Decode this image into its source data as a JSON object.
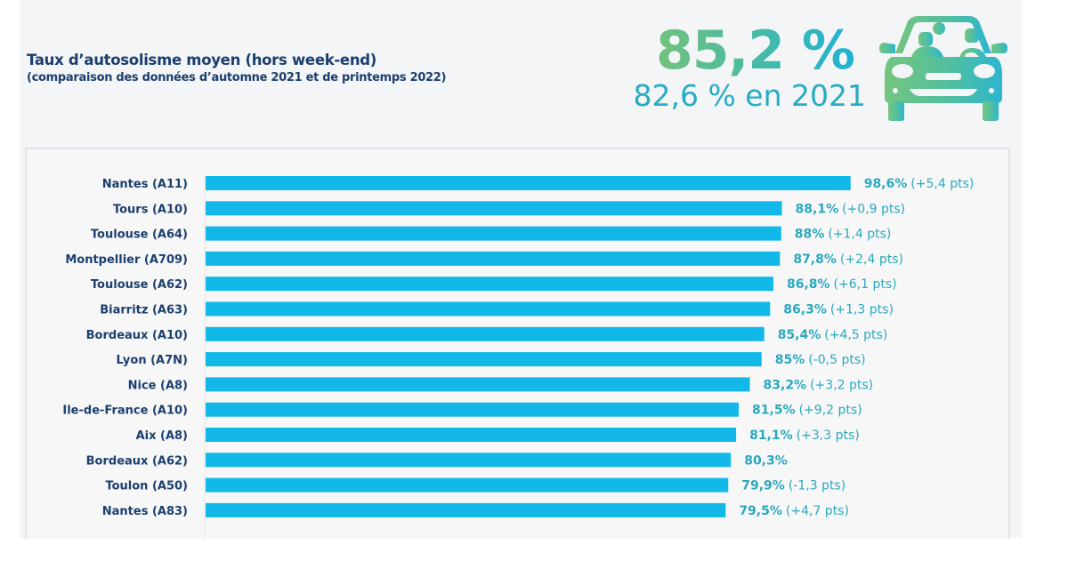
{
  "header": {
    "title": "Taux d’autosolisme moyen (hors week-end)",
    "subtitle": "(comparaison des données d’automne 2021 et de printemps 2022)",
    "highlight_value": "85,2 %",
    "previous_value": "82,6 % en 2021",
    "icon": "car-with-passengers-icon"
  },
  "colors": {
    "bar": "#12b9e8",
    "title": "#1b3f6e",
    "value_text": "#2aa9bd",
    "highlight_gradient": [
      "#72c27d",
      "#1fb2d6"
    ]
  },
  "chart_data": {
    "type": "bar",
    "orientation": "horizontal",
    "title": "Taux d’autosolisme moyen (hors week-end)",
    "subtitle": "(comparaison des données d’automne 2021 et de printemps 2022)",
    "xlabel": "",
    "ylabel": "",
    "xlim": [
      0,
      100
    ],
    "grid": false,
    "legend": "none",
    "categories": [
      "Nantes (A11)",
      "Tours (A10)",
      "Toulouse (A64)",
      "Montpellier (A709)",
      "Toulouse (A62)",
      "Biarritz (A63)",
      "Bordeaux (A10)",
      "Lyon (A7N)",
      "Nice (A8)",
      "Ile-de-France (A10)",
      "Aix (A8)",
      "Bordeaux (A62)",
      "Toulon (A50)",
      "Nantes (A83)"
    ],
    "values": [
      98.6,
      88.1,
      88.0,
      87.8,
      86.8,
      86.3,
      85.4,
      85.0,
      83.2,
      81.5,
      81.1,
      80.3,
      79.9,
      79.5
    ],
    "value_labels": [
      "98,6%",
      "88,1%",
      "88%",
      "87,8%",
      "86,8%",
      "86,3%",
      "85,4%",
      "85%",
      "83,2%",
      "81,5%",
      "81,1%",
      "80,3%",
      "79,9%",
      "79,5%"
    ],
    "delta_labels": [
      "(+5,4 pts)",
      "(+0,9 pts)",
      "(+1,4 pts)",
      "(+2,4 pts)",
      "(+6,1 pts)",
      "(+1,3 pts)",
      "(+4,5 pts)",
      "(-0,5 pts)",
      "(+3,2 pts)",
      "(+9,2 pts)",
      "(+3,3 pts)",
      "",
      "(-1,3 pts)",
      "(+4,7 pts)"
    ],
    "deltas_pts": [
      5.4,
      0.9,
      1.4,
      2.4,
      6.1,
      1.3,
      4.5,
      -0.5,
      3.2,
      9.2,
      3.3,
      null,
      -1.3,
      4.7
    ],
    "annotations": [
      "85,2 %",
      "82,6 % en 2021"
    ]
  }
}
